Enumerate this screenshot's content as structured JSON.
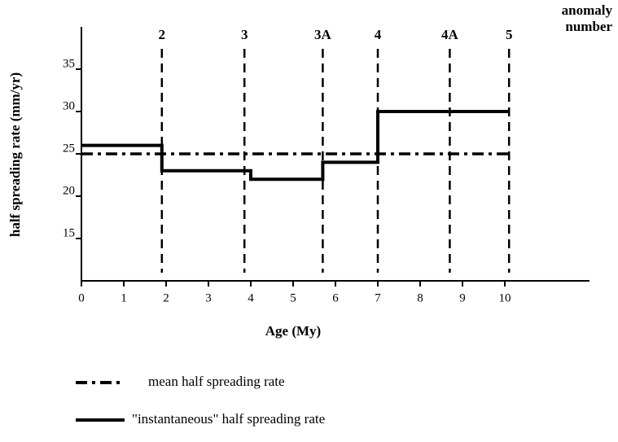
{
  "chart_data": {
    "type": "line",
    "xlabel": "Age (My)",
    "ylabel": "half spreading rate (mm/yr)",
    "xlim": [
      0,
      12
    ],
    "xticks": [
      0,
      1,
      2,
      3,
      4,
      5,
      6,
      7,
      8,
      9,
      10
    ],
    "ylim": [
      10,
      40
    ],
    "yticks": [
      15,
      20,
      25,
      30,
      35
    ],
    "anomaly_title": [
      "anomaly",
      "number"
    ],
    "anomalies": [
      {
        "label": "2",
        "age": 1.9
      },
      {
        "label": "3",
        "age": 3.85
      },
      {
        "label": "3A",
        "age": 5.7
      },
      {
        "label": "4",
        "age": 7.0
      },
      {
        "label": "4A",
        "age": 8.7
      },
      {
        "label": "5",
        "age": 10.1
      }
    ],
    "series": [
      {
        "name": "mean half spreading rate",
        "color": "#000000",
        "style": "dash-dot",
        "x": [
          0,
          10.1
        ],
        "values": [
          25,
          25
        ]
      },
      {
        "name": "\"instantaneous\" half spreading rate",
        "color": "#000000",
        "style": "solid",
        "x": [
          0,
          1.9,
          1.9,
          4,
          4,
          5.7,
          5.7,
          7,
          7,
          10.1
        ],
        "values": [
          26,
          26,
          23,
          23,
          22,
          22,
          24,
          24,
          30,
          30
        ]
      }
    ]
  }
}
